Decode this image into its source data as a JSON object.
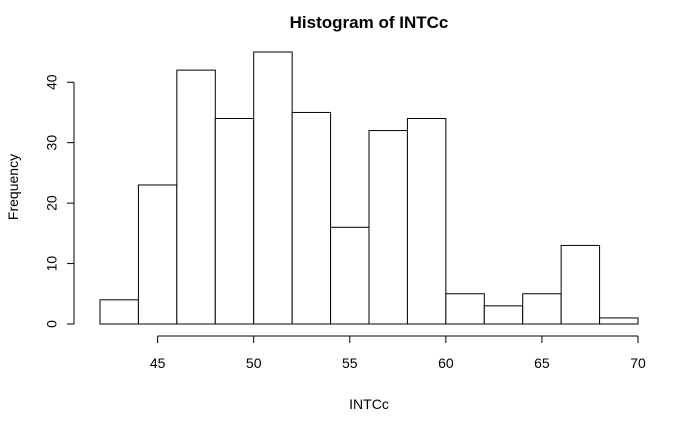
{
  "chart_data": {
    "type": "bar",
    "title": "Histogram of INTCc",
    "xlabel": "INTCc",
    "ylabel": "Frequency",
    "bin_edges": [
      42,
      44,
      46,
      48,
      50,
      52,
      54,
      56,
      58,
      60,
      62,
      64,
      66,
      68,
      70
    ],
    "values": [
      4,
      23,
      42,
      34,
      45,
      35,
      16,
      32,
      34,
      5,
      3,
      5,
      13,
      1
    ],
    "xlim": [
      42,
      70
    ],
    "ylim": [
      0,
      45
    ],
    "x_ticks": [
      45,
      50,
      55,
      60,
      65,
      70
    ],
    "y_ticks": [
      0,
      10,
      20,
      30,
      40
    ],
    "grid": false,
    "legend": "none",
    "bar_fill": "#ffffff",
    "bar_stroke": "#000000"
  }
}
